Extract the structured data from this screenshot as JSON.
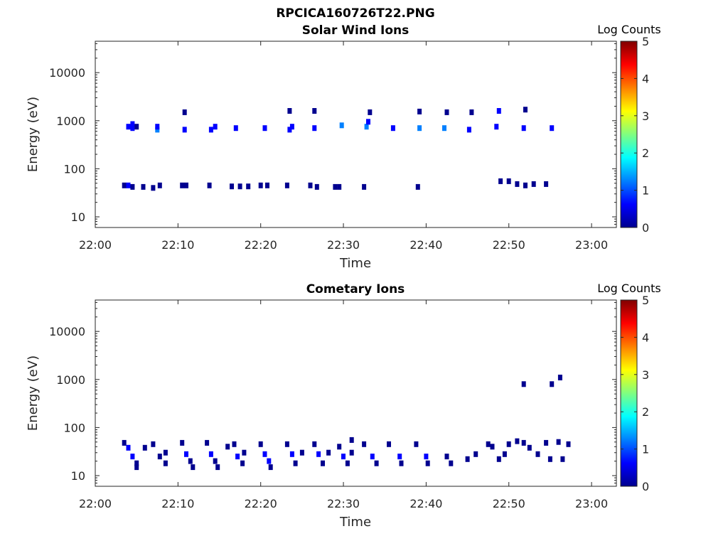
{
  "figure_title": "RPCICA160726T22.PNG",
  "colormap": [
    "#00008f",
    "#0000ff",
    "#0080ff",
    "#00ffff",
    "#80ff80",
    "#ffff00",
    "#ff8000",
    "#ff0000",
    "#800000"
  ],
  "chart_data": [
    {
      "type": "heatmap",
      "title": "Solar Wind Ions",
      "xlabel": "Time",
      "ylabel": "Energy (eV)",
      "yscale": "log",
      "ylim": [
        6,
        45000
      ],
      "xlim": [
        "22:00",
        "23:03"
      ],
      "x_ticks": [
        "22:00",
        "22:10",
        "22:20",
        "22:30",
        "22:40",
        "22:50",
        "23:00"
      ],
      "y_ticks": [
        "10",
        "100",
        "1000",
        "10000"
      ],
      "colorbar": {
        "title": "Log Counts",
        "range": [
          0,
          5
        ],
        "ticks": [
          "0",
          "1",
          "2",
          "3",
          "4",
          "5"
        ]
      },
      "grid": false,
      "cells": [
        {
          "t": "22:03.5",
          "e": 45,
          "v": 0.3
        },
        {
          "t": "22:04.0",
          "e": 45,
          "v": 0.4
        },
        {
          "t": "22:04.5",
          "e": 42,
          "v": 0.3
        },
        {
          "t": "22:04.0",
          "e": 750,
          "v": 0.5
        },
        {
          "t": "22:04.5",
          "e": 700,
          "v": 0.9
        },
        {
          "t": "22:04.5",
          "e": 850,
          "v": 0.6
        },
        {
          "t": "22:05.0",
          "e": 750,
          "v": 0.3
        },
        {
          "t": "22:05.8",
          "e": 42,
          "v": 0.2
        },
        {
          "t": "22:07.0",
          "e": 40,
          "v": 0.3
        },
        {
          "t": "22:07.5",
          "e": 650,
          "v": 1.2
        },
        {
          "t": "22:07.5",
          "e": 750,
          "v": 0.6
        },
        {
          "t": "22:07.8",
          "e": 45,
          "v": 0.2
        },
        {
          "t": "22:10.5",
          "e": 45,
          "v": 0.3
        },
        {
          "t": "22:10.8",
          "e": 650,
          "v": 0.8
        },
        {
          "t": "22:10.8",
          "e": 1500,
          "v": 0.3
        },
        {
          "t": "22:11.0",
          "e": 45,
          "v": 0.3
        },
        {
          "t": "22:13.8",
          "e": 45,
          "v": 0.3
        },
        {
          "t": "22:14.0",
          "e": 650,
          "v": 0.7
        },
        {
          "t": "22:14.5",
          "e": 750,
          "v": 0.5
        },
        {
          "t": "22:16.5",
          "e": 43,
          "v": 0.3
        },
        {
          "t": "22:17.0",
          "e": 700,
          "v": 0.8
        },
        {
          "t": "22:17.5",
          "e": 43,
          "v": 0.2
        },
        {
          "t": "22:18.5",
          "e": 43,
          "v": 0.2
        },
        {
          "t": "22:20.0",
          "e": 45,
          "v": 0.3
        },
        {
          "t": "22:20.5",
          "e": 700,
          "v": 0.9
        },
        {
          "t": "22:20.8",
          "e": 45,
          "v": 0.3
        },
        {
          "t": "22:23.2",
          "e": 45,
          "v": 0.3
        },
        {
          "t": "22:23.5",
          "e": 650,
          "v": 0.8
        },
        {
          "t": "22:23.5",
          "e": 1600,
          "v": 0.2
        },
        {
          "t": "22:23.8",
          "e": 750,
          "v": 0.6
        },
        {
          "t": "22:26.0",
          "e": 45,
          "v": 0.3
        },
        {
          "t": "22:26.5",
          "e": 700,
          "v": 0.8
        },
        {
          "t": "22:26.5",
          "e": 1600,
          "v": 0.2
        },
        {
          "t": "22:26.8",
          "e": 42,
          "v": 0.3
        },
        {
          "t": "22:29.0",
          "e": 42,
          "v": 0.2
        },
        {
          "t": "22:29.8",
          "e": 800,
          "v": 1.0
        },
        {
          "t": "22:29.5",
          "e": 42,
          "v": 0.2
        },
        {
          "t": "22:32.5",
          "e": 42,
          "v": 0.2
        },
        {
          "t": "22:32.8",
          "e": 750,
          "v": 1.1
        },
        {
          "t": "22:33.0",
          "e": 950,
          "v": 0.6
        },
        {
          "t": "22:33.2",
          "e": 1500,
          "v": 0.2
        },
        {
          "t": "22:36.0",
          "e": 700,
          "v": 0.6
        },
        {
          "t": "22:39.0",
          "e": 42,
          "v": 0.2
        },
        {
          "t": "22:39.2",
          "e": 700,
          "v": 1.4
        },
        {
          "t": "22:39.2",
          "e": 1550,
          "v": 0.3
        },
        {
          "t": "22:42.2",
          "e": 700,
          "v": 1.1
        },
        {
          "t": "22:42.5",
          "e": 1500,
          "v": 0.2
        },
        {
          "t": "22:45.2",
          "e": 650,
          "v": 0.9
        },
        {
          "t": "22:45.5",
          "e": 1500,
          "v": 0.2
        },
        {
          "t": "22:48.5",
          "e": 750,
          "v": 0.9
        },
        {
          "t": "22:48.8",
          "e": 1600,
          "v": 0.4
        },
        {
          "t": "22:49.0",
          "e": 55,
          "v": 0.2
        },
        {
          "t": "22:50.0",
          "e": 55,
          "v": 0.2
        },
        {
          "t": "22:51.0",
          "e": 48,
          "v": 0.2
        },
        {
          "t": "22:51.8",
          "e": 700,
          "v": 0.7
        },
        {
          "t": "22:52.0",
          "e": 1700,
          "v": 0.2
        },
        {
          "t": "22:52.0",
          "e": 45,
          "v": 0.2
        },
        {
          "t": "22:53.0",
          "e": 48,
          "v": 0.2
        },
        {
          "t": "22:54.5",
          "e": 48,
          "v": 0.2
        },
        {
          "t": "22:55.2",
          "e": 700,
          "v": 0.8
        }
      ]
    },
    {
      "type": "heatmap",
      "title": "Cometary Ions",
      "xlabel": "Time",
      "ylabel": "Energy (eV)",
      "yscale": "log",
      "ylim": [
        6,
        45000
      ],
      "xlim": [
        "22:00",
        "23:03"
      ],
      "x_ticks": [
        "22:00",
        "22:10",
        "22:20",
        "22:30",
        "22:40",
        "22:50",
        "23:00"
      ],
      "y_ticks": [
        "10",
        "100",
        "1000",
        "10000"
      ],
      "colorbar": {
        "title": "Log Counts",
        "range": [
          0,
          5
        ],
        "ticks": [
          "0",
          "1",
          "2",
          "3",
          "4",
          "5"
        ]
      },
      "grid": false,
      "cells": [
        {
          "t": "22:03.5",
          "e": 48,
          "v": 0.3
        },
        {
          "t": "22:04.0",
          "e": 38,
          "v": 0.5
        },
        {
          "t": "22:04.5",
          "e": 25,
          "v": 0.4
        },
        {
          "t": "22:05.0",
          "e": 18,
          "v": 0.3
        },
        {
          "t": "22:05.0",
          "e": 15,
          "v": 0.2
        },
        {
          "t": "22:06.0",
          "e": 38,
          "v": 0.2
        },
        {
          "t": "22:07.0",
          "e": 45,
          "v": 0.3
        },
        {
          "t": "22:07.8",
          "e": 25,
          "v": 0.3
        },
        {
          "t": "22:08.5",
          "e": 18,
          "v": 0.3
        },
        {
          "t": "22:08.5",
          "e": 30,
          "v": 0.2
        },
        {
          "t": "22:10.5",
          "e": 48,
          "v": 0.3
        },
        {
          "t": "22:11.0",
          "e": 28,
          "v": 0.4
        },
        {
          "t": "22:11.5",
          "e": 20,
          "v": 0.3
        },
        {
          "t": "22:11.8",
          "e": 15,
          "v": 0.3
        },
        {
          "t": "22:13.5",
          "e": 48,
          "v": 0.3
        },
        {
          "t": "22:14.0",
          "e": 28,
          "v": 0.4
        },
        {
          "t": "22:14.5",
          "e": 20,
          "v": 0.3
        },
        {
          "t": "22:14.8",
          "e": 15,
          "v": 0.3
        },
        {
          "t": "22:16.0",
          "e": 40,
          "v": 0.2
        },
        {
          "t": "22:16.8",
          "e": 45,
          "v": 0.3
        },
        {
          "t": "22:17.2",
          "e": 25,
          "v": 0.4
        },
        {
          "t": "22:17.8",
          "e": 18,
          "v": 0.3
        },
        {
          "t": "22:18.0",
          "e": 30,
          "v": 0.2
        },
        {
          "t": "22:20.0",
          "e": 45,
          "v": 0.2
        },
        {
          "t": "22:20.5",
          "e": 28,
          "v": 0.4
        },
        {
          "t": "22:21.0",
          "e": 20,
          "v": 0.4
        },
        {
          "t": "22:21.2",
          "e": 15,
          "v": 0.3
        },
        {
          "t": "22:23.2",
          "e": 45,
          "v": 0.3
        },
        {
          "t": "22:23.8",
          "e": 28,
          "v": 0.4
        },
        {
          "t": "22:24.2",
          "e": 18,
          "v": 0.3
        },
        {
          "t": "22:25.0",
          "e": 30,
          "v": 0.2
        },
        {
          "t": "22:26.5",
          "e": 45,
          "v": 0.3
        },
        {
          "t": "22:27.0",
          "e": 28,
          "v": 0.4
        },
        {
          "t": "22:27.5",
          "e": 18,
          "v": 0.3
        },
        {
          "t": "22:28.2",
          "e": 30,
          "v": 0.2
        },
        {
          "t": "22:29.5",
          "e": 40,
          "v": 0.2
        },
        {
          "t": "22:30.0",
          "e": 25,
          "v": 0.4
        },
        {
          "t": "22:30.5",
          "e": 18,
          "v": 0.3
        },
        {
          "t": "22:31.0",
          "e": 30,
          "v": 0.2
        },
        {
          "t": "22:31.0",
          "e": 55,
          "v": 0.2
        },
        {
          "t": "22:32.5",
          "e": 45,
          "v": 0.2
        },
        {
          "t": "22:33.5",
          "e": 25,
          "v": 0.4
        },
        {
          "t": "22:34.0",
          "e": 18,
          "v": 0.3
        },
        {
          "t": "22:35.5",
          "e": 45,
          "v": 0.2
        },
        {
          "t": "22:36.8",
          "e": 25,
          "v": 0.4
        },
        {
          "t": "22:37.0",
          "e": 18,
          "v": 0.3
        },
        {
          "t": "22:38.8",
          "e": 45,
          "v": 0.2
        },
        {
          "t": "22:40.0",
          "e": 25,
          "v": 0.5
        },
        {
          "t": "22:40.2",
          "e": 18,
          "v": 0.3
        },
        {
          "t": "22:42.5",
          "e": 25,
          "v": 0.3
        },
        {
          "t": "22:43.0",
          "e": 18,
          "v": 0.3
        },
        {
          "t": "22:45.0",
          "e": 22,
          "v": 0.3
        },
        {
          "t": "22:46.0",
          "e": 28,
          "v": 0.3
        },
        {
          "t": "22:47.5",
          "e": 45,
          "v": 0.2
        },
        {
          "t": "22:48.0",
          "e": 40,
          "v": 0.2
        },
        {
          "t": "22:48.8",
          "e": 22,
          "v": 0.3
        },
        {
          "t": "22:49.5",
          "e": 28,
          "v": 0.3
        },
        {
          "t": "22:50.0",
          "e": 45,
          "v": 0.2
        },
        {
          "t": "22:51.0",
          "e": 52,
          "v": 0.3
        },
        {
          "t": "22:51.8",
          "e": 48,
          "v": 0.2
        },
        {
          "t": "22:51.8",
          "e": 800,
          "v": 0.2
        },
        {
          "t": "22:52.5",
          "e": 38,
          "v": 0.2
        },
        {
          "t": "22:53.5",
          "e": 28,
          "v": 0.3
        },
        {
          "t": "22:54.5",
          "e": 48,
          "v": 0.2
        },
        {
          "t": "22:55.0",
          "e": 22,
          "v": 0.3
        },
        {
          "t": "22:55.2",
          "e": 800,
          "v": 0.2
        },
        {
          "t": "22:56.2",
          "e": 1100,
          "v": 0.2
        },
        {
          "t": "22:56.0",
          "e": 50,
          "v": 0.2
        },
        {
          "t": "22:56.5",
          "e": 22,
          "v": 0.3
        },
        {
          "t": "22:57.2",
          "e": 45,
          "v": 0.2
        }
      ]
    }
  ]
}
